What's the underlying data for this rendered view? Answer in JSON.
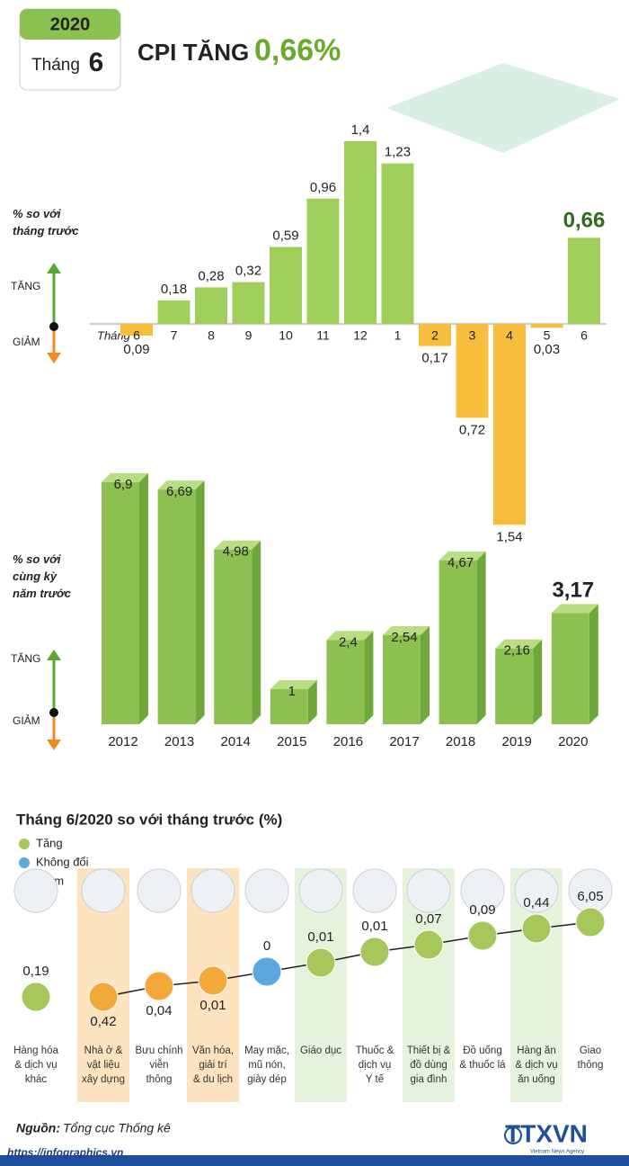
{
  "header": {
    "year": "2020",
    "month_word": "Tháng",
    "month": "6",
    "title": "CPI TĂNG",
    "title_value": "0,66%"
  },
  "chart_data": [
    {
      "type": "bar",
      "ylabel": "% so với\ntháng trước",
      "up_label": "TĂNG",
      "down_label": "GIẢM",
      "xlabel": "Tháng",
      "categories": [
        "6",
        "7",
        "8",
        "9",
        "10",
        "11",
        "12",
        "1",
        "2",
        "3",
        "4",
        "5",
        "6"
      ],
      "values": [
        -0.09,
        0.18,
        0.28,
        0.32,
        0.59,
        0.96,
        1.4,
        1.23,
        -0.17,
        -0.72,
        -1.54,
        -0.03,
        0.66
      ],
      "value_labels": [
        "0,09",
        "0,18",
        "0,28",
        "0,32",
        "0,59",
        "0,96",
        "1,4",
        "1,23",
        "0,17",
        "0,72",
        "1,54",
        "0,03",
        "0,66"
      ],
      "color": "#9fcf5a",
      "negative_color": "#f7bd3c"
    },
    {
      "type": "bar3d",
      "ylabel": "% so với\ncùng kỳ\nnăm trước",
      "up_label": "TĂNG",
      "down_label": "GIẢM",
      "categories": [
        "2012",
        "2013",
        "2014",
        "2015",
        "2016",
        "2017",
        "2018",
        "2019",
        "2020"
      ],
      "values": [
        6.9,
        6.69,
        4.98,
        1,
        2.4,
        2.54,
        4.67,
        2.16,
        3.17
      ],
      "value_labels": [
        "6,9",
        "6,69",
        "4,98",
        "1",
        "2,4",
        "2,54",
        "4,67",
        "2,16",
        "3,17"
      ],
      "color": "#8cc152"
    },
    {
      "type": "dot",
      "title": "Tháng 6/2020 so với tháng trước (%)",
      "legend": [
        {
          "name": "Tăng",
          "color": "#a6c85a"
        },
        {
          "name": "Không đổi",
          "color": "#5ba9dc"
        },
        {
          "name": "Giảm",
          "color": "#f3a93a"
        }
      ],
      "categories": [
        "Hàng hóa\n& dịch vụ\nkhác",
        "Nhà ở &\nvật liệu\nxây dựng",
        "Bưu chính\nviễn\nthông",
        "Văn hóa,\ngiải trí\n& du lịch",
        "May mặc,\nmũ nón,\ngiày dép",
        "Giáo dục",
        "Thuốc &\ndịch vụ\nY tế",
        "Thiết bị &\nđồ dùng\ngia đình",
        "Đồ uống\n& thuốc lá",
        "Hàng ăn\n& dịch vụ\năn uống",
        "Giao\nthông"
      ],
      "values": [
        0.19,
        -0.42,
        -0.04,
        -0.01,
        0,
        0.01,
        0.01,
        0.07,
        0.09,
        0.44,
        6.05
      ],
      "value_labels": [
        "0,19",
        "0,42",
        "0,04",
        "0,01",
        "0",
        "0,01",
        "0,01",
        "0,07",
        "0,09",
        "0,44",
        "6,05"
      ]
    }
  ],
  "footer": {
    "source_label": "Nguồn:",
    "source": "Tổng cục Thống kê",
    "url": "https://infographics.vn",
    "logo": "TTXVN",
    "logo_sub": "Vietnam News Agency"
  }
}
